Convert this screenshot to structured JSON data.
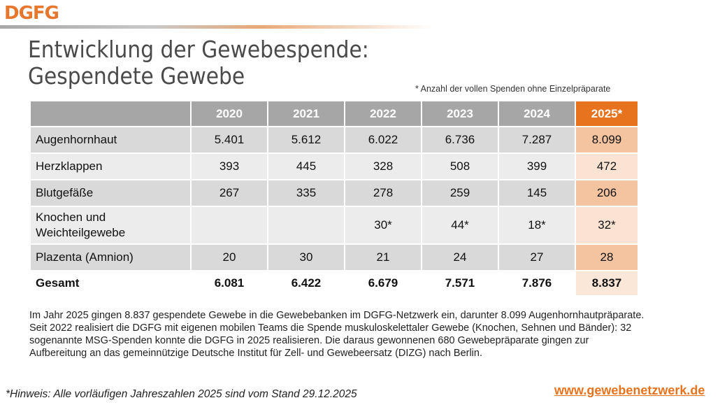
{
  "logo": {
    "text": "DGFG"
  },
  "title_line1": "Entwicklung der Gewebespende:",
  "title_line2": "Gespendete Gewebe",
  "note_top": "* Anzahl der vollen Spenden ohne Einzelpräparate",
  "table": {
    "header": [
      "2020",
      "2021",
      "2022",
      "2023",
      "2024",
      "2025*"
    ],
    "rows": [
      {
        "label": "Augenhornhaut",
        "values": [
          "5.401",
          "5.612",
          "6.022",
          "6.736",
          "7.287",
          "8.099"
        ]
      },
      {
        "label": "Herzklappen",
        "values": [
          "393",
          "445",
          "328",
          "508",
          "399",
          "472"
        ]
      },
      {
        "label": "Blutgefäße",
        "values": [
          "267",
          "335",
          "278",
          "259",
          "145",
          "206"
        ]
      },
      {
        "label_line1": "Knochen und",
        "label_line2": "Weichteilgewebe",
        "values": [
          "",
          "",
          "30*",
          "44*",
          "18*",
          "32*"
        ]
      },
      {
        "label": "Plazenta (Amnion)",
        "values": [
          "20",
          "30",
          "21",
          "24",
          "27",
          "28"
        ]
      },
      {
        "label": "Gesamt",
        "values": [
          "6.081",
          "6.422",
          "6.679",
          "7.571",
          "7.876",
          "8.837"
        ]
      }
    ]
  },
  "description": "Im Jahr 2025 gingen 8.837 gespendete Gewebe in die Gewebebanken im DGFG-Netzwerk ein, darunter 8.099 Augenhornhautpräparate. Seit 2022 realisiert die DGFG mit eigenen mobilen Teams die Spende muskuloskelettaler Gewebe (Knochen, Sehnen und Bänder): 32 sogenannte MSG-Spenden konnte die DGFG in 2025 realisieren. Die daraus gewonnenen 680 Gewebepräparate gingen zur Aufbereitung an das gemeinnützige Deutsche Institut für Zell- und Gewebeersatz (DIZG) nach Berlin.",
  "hint": "*Hinweis: Alle vorläufigen Jahreszahlen 2025 sind vom Stand 29.12.2025",
  "url": "www.gewebenetzwerk.de",
  "colors": {
    "accent": "#e8731f",
    "header_gray": "#a6a6a6",
    "row_dark": "#d9d9d9",
    "row_light": "#ececec"
  }
}
